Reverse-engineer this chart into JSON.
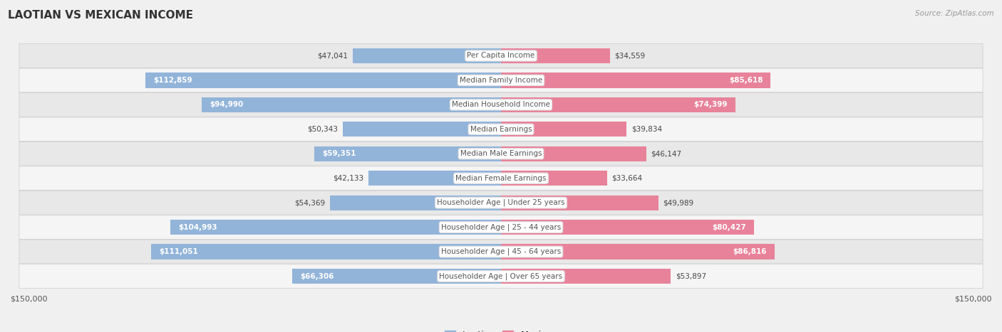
{
  "title": "LAOTIAN VS MEXICAN INCOME",
  "source": "Source: ZipAtlas.com",
  "categories": [
    "Per Capita Income",
    "Median Family Income",
    "Median Household Income",
    "Median Earnings",
    "Median Male Earnings",
    "Median Female Earnings",
    "Householder Age | Under 25 years",
    "Householder Age | 25 - 44 years",
    "Householder Age | 45 - 64 years",
    "Householder Age | Over 65 years"
  ],
  "laotian_values": [
    47041,
    112859,
    94990,
    50343,
    59351,
    42133,
    54369,
    104993,
    111051,
    66306
  ],
  "mexican_values": [
    34559,
    85618,
    74399,
    39834,
    46147,
    33664,
    49989,
    80427,
    86816,
    53897
  ],
  "max_value": 150000,
  "laotian_color": "#92b4d9",
  "mexican_color": "#e8829a",
  "bg_color": "#f0f0f0",
  "row_bg_even": "#e8e8e8",
  "row_bg_odd": "#f5f5f5",
  "title_fontsize": 11,
  "label_fontsize": 7.5,
  "category_fontsize": 7.5,
  "legend_fontsize": 9,
  "axis_fontsize": 8,
  "legend_laotian_color": "#92b4d9",
  "legend_mexican_color": "#e8829a",
  "inside_label_threshold": 55000
}
